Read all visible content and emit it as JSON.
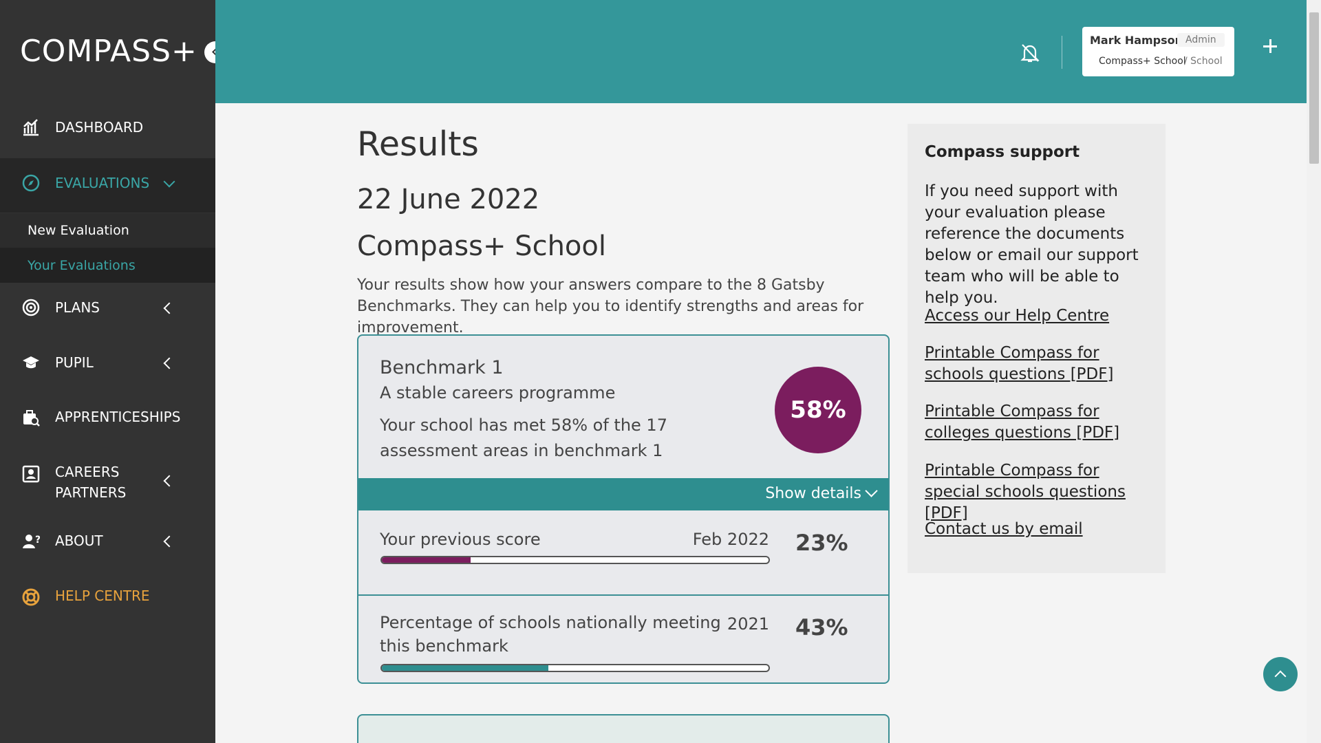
{
  "sidebar": {
    "logo": "COMPASS+",
    "nav": [
      "DASHBOARD",
      "EVALUATIONS",
      "PLANS",
      "PUPIL",
      "APPRENTICESHIPS",
      "CAREERS PARTNERS",
      "ABOUT",
      "HELP CENTRE"
    ],
    "subnav": [
      "New Evaluation",
      "Your Evaluations"
    ]
  },
  "header": {
    "user_name": "Mark Hampson",
    "role": "Admin",
    "org": "Compass+ School",
    "org_type": "/ School"
  },
  "main": {
    "title": "Results",
    "date": "22 June 2022",
    "school": "Compass+ School",
    "intro": "Your results show how your answers compare to the 8 Gatsby Benchmarks. They can help you to identify strengths and areas for improvement.",
    "benchmark": {
      "name": "Benchmark 1",
      "subtitle": "A stable careers programme",
      "summary": "Your school has met 58% of the 17 assessment areas in benchmark 1",
      "score": {
        "value": 58,
        "label": "58%"
      },
      "toggle": "Show details",
      "previous": {
        "label": "Your previous score",
        "date": "Feb 2022",
        "score": {
          "value": 23,
          "label": "23%"
        }
      },
      "national": {
        "label": "Percentage of schools nationally meeting this benchmark",
        "date": "2021",
        "score": {
          "value": 43,
          "label": "43%"
        }
      }
    }
  },
  "support": {
    "title": "Compass support",
    "body": "If you need support with your evaluation please reference the documents below or email our support team who will be able to help you.",
    "links": [
      "Access our Help Centre",
      "Printable Compass for schools questions [PDF]",
      "Printable Compass for colleges questions [PDF]",
      "Printable Compass for special schools questions [PDF]",
      "Contact us by email"
    ]
  }
}
